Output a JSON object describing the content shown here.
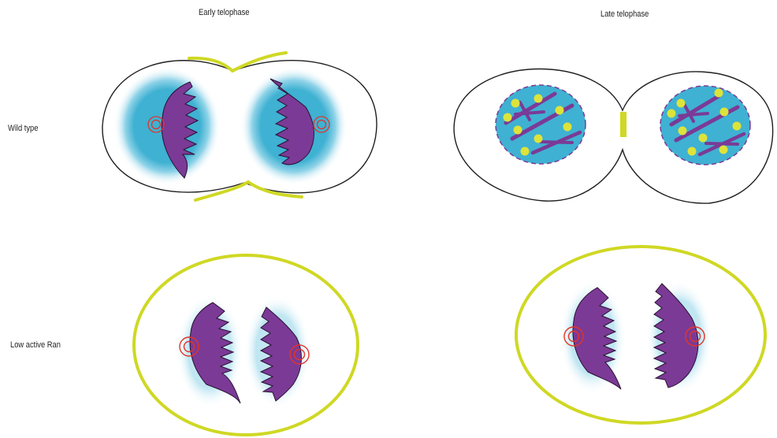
{
  "labels": {
    "early_telophase": "Early telophase",
    "late_telophase": "Late telophase",
    "wild_type": "Wild type",
    "low_active_ran": "Low active  Ran"
  },
  "colors": {
    "chromosome": "#7b3a96",
    "nucleus_fill": "#3fb1d2",
    "halo": "#bfe6f2",
    "cortex": "#cfd824",
    "centrosome": "#e0352b",
    "outline": "#1e1e1e",
    "envelope": "#7b3a96",
    "dot": "#dde33a"
  }
}
